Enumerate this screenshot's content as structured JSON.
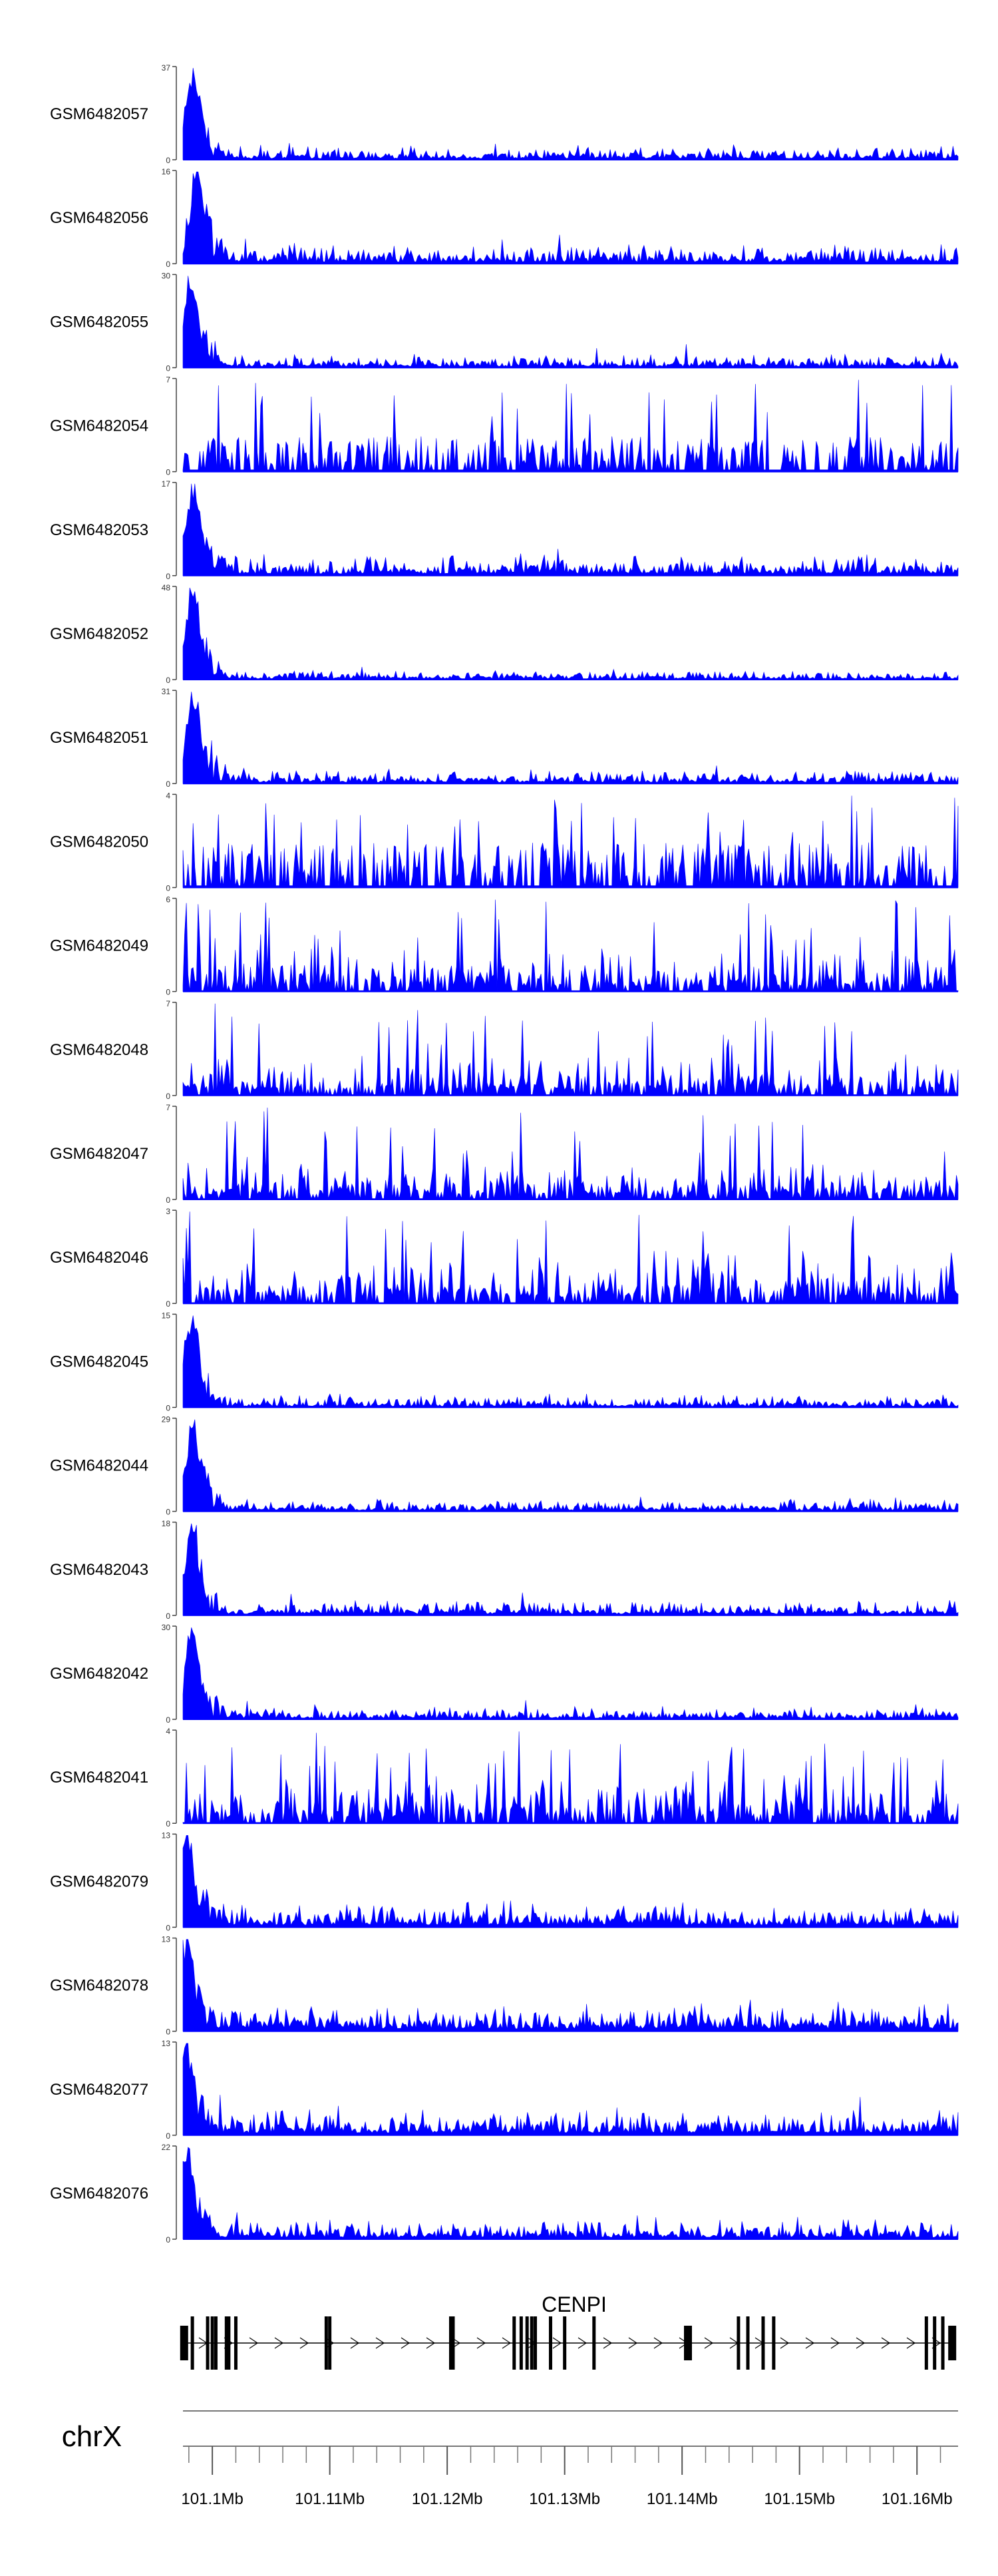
{
  "chart_data": {
    "type": "area",
    "color": "#0000ff",
    "tracks": [
      {
        "name": "GSM6482057",
        "ylim": [
          0,
          37
        ],
        "peak": 37,
        "bg": 0.09,
        "peakPos": 0.012,
        "style": "peak"
      },
      {
        "name": "GSM6482056",
        "ylim": [
          0,
          16
        ],
        "peak": 16,
        "bg": 0.13,
        "peakPos": 0.018,
        "style": "peak"
      },
      {
        "name": "GSM6482055",
        "ylim": [
          0,
          30
        ],
        "peak": 30,
        "bg": 0.09,
        "peakPos": 0.01,
        "style": "peak"
      },
      {
        "name": "GSM6482054",
        "ylim": [
          0,
          7
        ],
        "peak": 7,
        "bg": 0.35,
        "peakPos": 0.014,
        "style": "sparse"
      },
      {
        "name": "GSM6482053",
        "ylim": [
          0,
          17
        ],
        "peak": 17,
        "bg": 0.14,
        "peakPos": 0.014,
        "style": "peak"
      },
      {
        "name": "GSM6482052",
        "ylim": [
          0,
          48
        ],
        "peak": 48,
        "bg": 0.06,
        "peakPos": 0.012,
        "style": "peak"
      },
      {
        "name": "GSM6482051",
        "ylim": [
          0,
          31
        ],
        "peak": 31,
        "bg": 0.09,
        "peakPos": 0.014,
        "style": "peak"
      },
      {
        "name": "GSM6482050",
        "ylim": [
          0,
          4
        ],
        "peak": 4,
        "bg": 0.45,
        "peakPos": 0.5,
        "style": "sparse"
      },
      {
        "name": "GSM6482049",
        "ylim": [
          0,
          6
        ],
        "peak": 6,
        "bg": 0.4,
        "peakPos": 0.5,
        "style": "noisy"
      },
      {
        "name": "GSM6482048",
        "ylim": [
          0,
          7
        ],
        "peak": 7,
        "bg": 0.4,
        "peakPos": 0.5,
        "style": "noisy"
      },
      {
        "name": "GSM6482047",
        "ylim": [
          0,
          7
        ],
        "peak": 7,
        "bg": 0.35,
        "peakPos": 0.5,
        "style": "noisy"
      },
      {
        "name": "GSM6482046",
        "ylim": [
          0,
          3
        ],
        "peak": 3,
        "bg": 0.45,
        "peakPos": 0.5,
        "style": "noisy"
      },
      {
        "name": "GSM6482045",
        "ylim": [
          0,
          15
        ],
        "peak": 15,
        "bg": 0.08,
        "peakPos": 0.01,
        "style": "peak"
      },
      {
        "name": "GSM6482044",
        "ylim": [
          0,
          29
        ],
        "peak": 29,
        "bg": 0.08,
        "peakPos": 0.012,
        "style": "peak"
      },
      {
        "name": "GSM6482043",
        "ylim": [
          0,
          18
        ],
        "peak": 18,
        "bg": 0.1,
        "peakPos": 0.012,
        "style": "peak"
      },
      {
        "name": "GSM6482042",
        "ylim": [
          0,
          30
        ],
        "peak": 30,
        "bg": 0.08,
        "peakPos": 0.012,
        "style": "peak"
      },
      {
        "name": "GSM6482041",
        "ylim": [
          0,
          4
        ],
        "peak": 4,
        "bg": 0.45,
        "peakPos": 0.5,
        "style": "noisy"
      },
      {
        "name": "GSM6482079",
        "ylim": [
          0,
          13
        ],
        "peak": 13,
        "bg": 0.16,
        "peakPos": 0.004,
        "style": "peak"
      },
      {
        "name": "GSM6482078",
        "ylim": [
          0,
          13
        ],
        "peak": 13,
        "bg": 0.18,
        "peakPos": 0.004,
        "style": "peak"
      },
      {
        "name": "GSM6482077",
        "ylim": [
          0,
          13
        ],
        "peak": 13,
        "bg": 0.17,
        "peakPos": 0.004,
        "style": "peak"
      },
      {
        "name": "GSM6482076",
        "ylim": [
          0,
          22
        ],
        "peak": 22,
        "bg": 0.13,
        "peakPos": 0.004,
        "style": "peak"
      }
    ],
    "gene": {
      "name": "CENPI",
      "strand": "+",
      "start_mb": 101.0975,
      "end_mb": 101.1633,
      "exons_mb": [
        101.0976,
        101.0983,
        101.0996,
        101.1,
        101.1003,
        101.1012,
        101.1014,
        101.102,
        101.1097,
        101.11,
        101.1203,
        101.1205,
        101.1257,
        101.1263,
        101.1268,
        101.1272,
        101.1275,
        101.1288,
        101.13,
        101.1325,
        101.1405,
        101.1448,
        101.1456,
        101.1469,
        101.1478,
        101.1608,
        101.1615,
        101.1622,
        101.163
      ]
    },
    "axis": {
      "chromosome": "chrX",
      "range_mb": [
        101.0975,
        101.1635
      ],
      "tick_labels": [
        "101.1Mb",
        "101.11Mb",
        "101.12Mb",
        "101.13Mb",
        "101.14Mb",
        "101.15Mb",
        "101.16Mb"
      ],
      "tick_values_mb": [
        101.1,
        101.11,
        101.12,
        101.13,
        101.14,
        101.15,
        101.16
      ],
      "minor_tick_step_mb": 0.002
    }
  }
}
